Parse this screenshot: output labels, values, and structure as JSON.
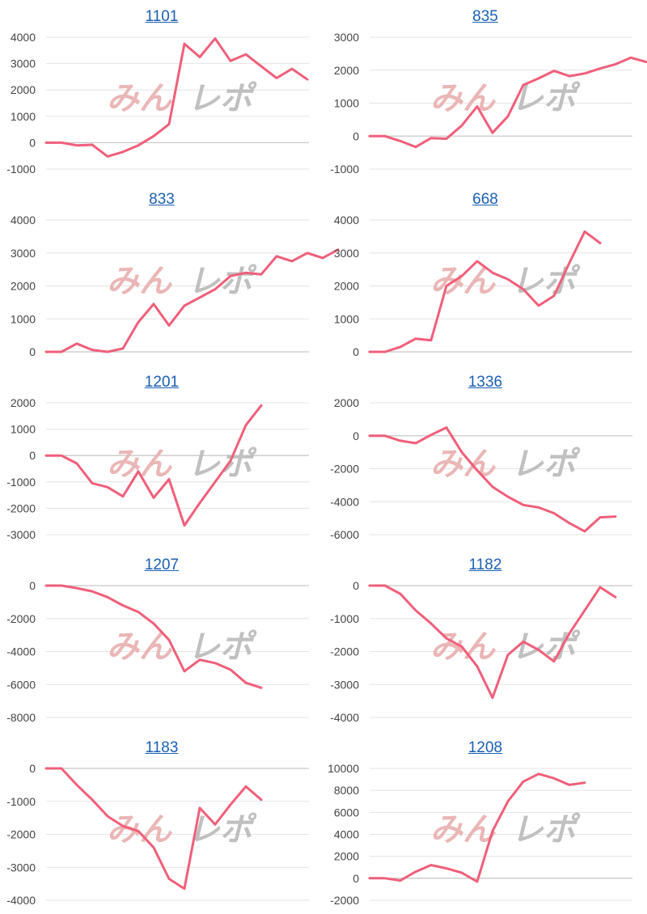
{
  "colors": {
    "line": "#ef5f7a",
    "grid": "#e3e3e3",
    "axis": "#c8c8c8",
    "title": "#1a5fb4"
  },
  "watermark": {
    "part1": "みん",
    "part2": "レポ"
  },
  "chart_data": [
    {
      "type": "line",
      "title": "1101",
      "ylim": [
        -1000,
        4000
      ],
      "yticks": [
        -1000,
        0,
        1000,
        2000,
        3000,
        4000
      ],
      "values": [
        0,
        0,
        -100,
        -80,
        -520,
        -350,
        -100,
        250,
        700,
        3750,
        3250,
        3950,
        3100,
        3350,
        2900,
        2450,
        2800,
        2400
      ]
    },
    {
      "type": "line",
      "title": "835",
      "ylim": [
        -1000,
        3000
      ],
      "yticks": [
        -1000,
        0,
        1000,
        2000,
        3000
      ],
      "values": [
        0,
        0,
        -150,
        -330,
        -60,
        -80,
        320,
        900,
        100,
        600,
        1550,
        1750,
        1980,
        1820,
        1900,
        2050,
        2180,
        2380,
        2250
      ]
    },
    {
      "type": "line",
      "title": "833",
      "ylim": [
        0,
        4000
      ],
      "yticks": [
        0,
        1000,
        2000,
        3000,
        4000
      ],
      "values": [
        0,
        0,
        250,
        60,
        0,
        100,
        900,
        1450,
        800,
        1400,
        1650,
        1900,
        2300,
        2400,
        2350,
        2900,
        2750,
        3000,
        2850,
        3100
      ]
    },
    {
      "type": "line",
      "title": "668",
      "ylim": [
        0,
        4000
      ],
      "yticks": [
        0,
        1000,
        2000,
        3000,
        4000
      ],
      "values": [
        0,
        0,
        150,
        400,
        350,
        2000,
        2300,
        2750,
        2400,
        2200,
        1900,
        1400,
        1700,
        2700,
        3650,
        3300
      ]
    },
    {
      "type": "line",
      "title": "1201",
      "ylim": [
        -3000,
        2000
      ],
      "yticks": [
        -3000,
        -2000,
        -1000,
        0,
        1000,
        2000
      ],
      "values": [
        0,
        0,
        -300,
        -1050,
        -1200,
        -1550,
        -600,
        -1600,
        -900,
        -2650,
        -1800,
        -1000,
        -200,
        1150,
        1900
      ]
    },
    {
      "type": "line",
      "title": "1336",
      "ylim": [
        -6000,
        2000
      ],
      "yticks": [
        -6000,
        -4000,
        -2000,
        0,
        2000
      ],
      "values": [
        0,
        0,
        -300,
        -450,
        50,
        500,
        -1000,
        -2100,
        -3100,
        -3700,
        -4200,
        -4350,
        -4700,
        -5300,
        -5800,
        -4950,
        -4900
      ]
    },
    {
      "type": "line",
      "title": "1207",
      "ylim": [
        -8000,
        0
      ],
      "yticks": [
        -8000,
        -6000,
        -4000,
        -2000,
        0
      ],
      "values": [
        0,
        0,
        -150,
        -350,
        -700,
        -1200,
        -1600,
        -2300,
        -3300,
        -5200,
        -4500,
        -4700,
        -5100,
        -5900,
        -6200
      ]
    },
    {
      "type": "line",
      "title": "1182",
      "ylim": [
        -4000,
        0
      ],
      "yticks": [
        -4000,
        -3000,
        -2000,
        -1000,
        0
      ],
      "values": [
        0,
        0,
        -250,
        -750,
        -1150,
        -1600,
        -1850,
        -2450,
        -3400,
        -2100,
        -1700,
        -1950,
        -2300,
        -1450,
        -750,
        -50,
        -350
      ]
    },
    {
      "type": "line",
      "title": "1183",
      "ylim": [
        -4000,
        0
      ],
      "yticks": [
        -4000,
        -3000,
        -2000,
        -1000,
        0
      ],
      "values": [
        0,
        0,
        -500,
        -950,
        -1450,
        -1750,
        -1900,
        -2400,
        -3350,
        -3650,
        -1200,
        -1700,
        -1100,
        -550,
        -950
      ]
    },
    {
      "type": "line",
      "title": "1208",
      "ylim": [
        -2000,
        10000
      ],
      "yticks": [
        -2000,
        0,
        2000,
        4000,
        6000,
        8000,
        10000
      ],
      "values": [
        0,
        0,
        -200,
        600,
        1200,
        900,
        500,
        -300,
        4300,
        7000,
        8800,
        9500,
        9100,
        8500,
        8700
      ]
    }
  ]
}
